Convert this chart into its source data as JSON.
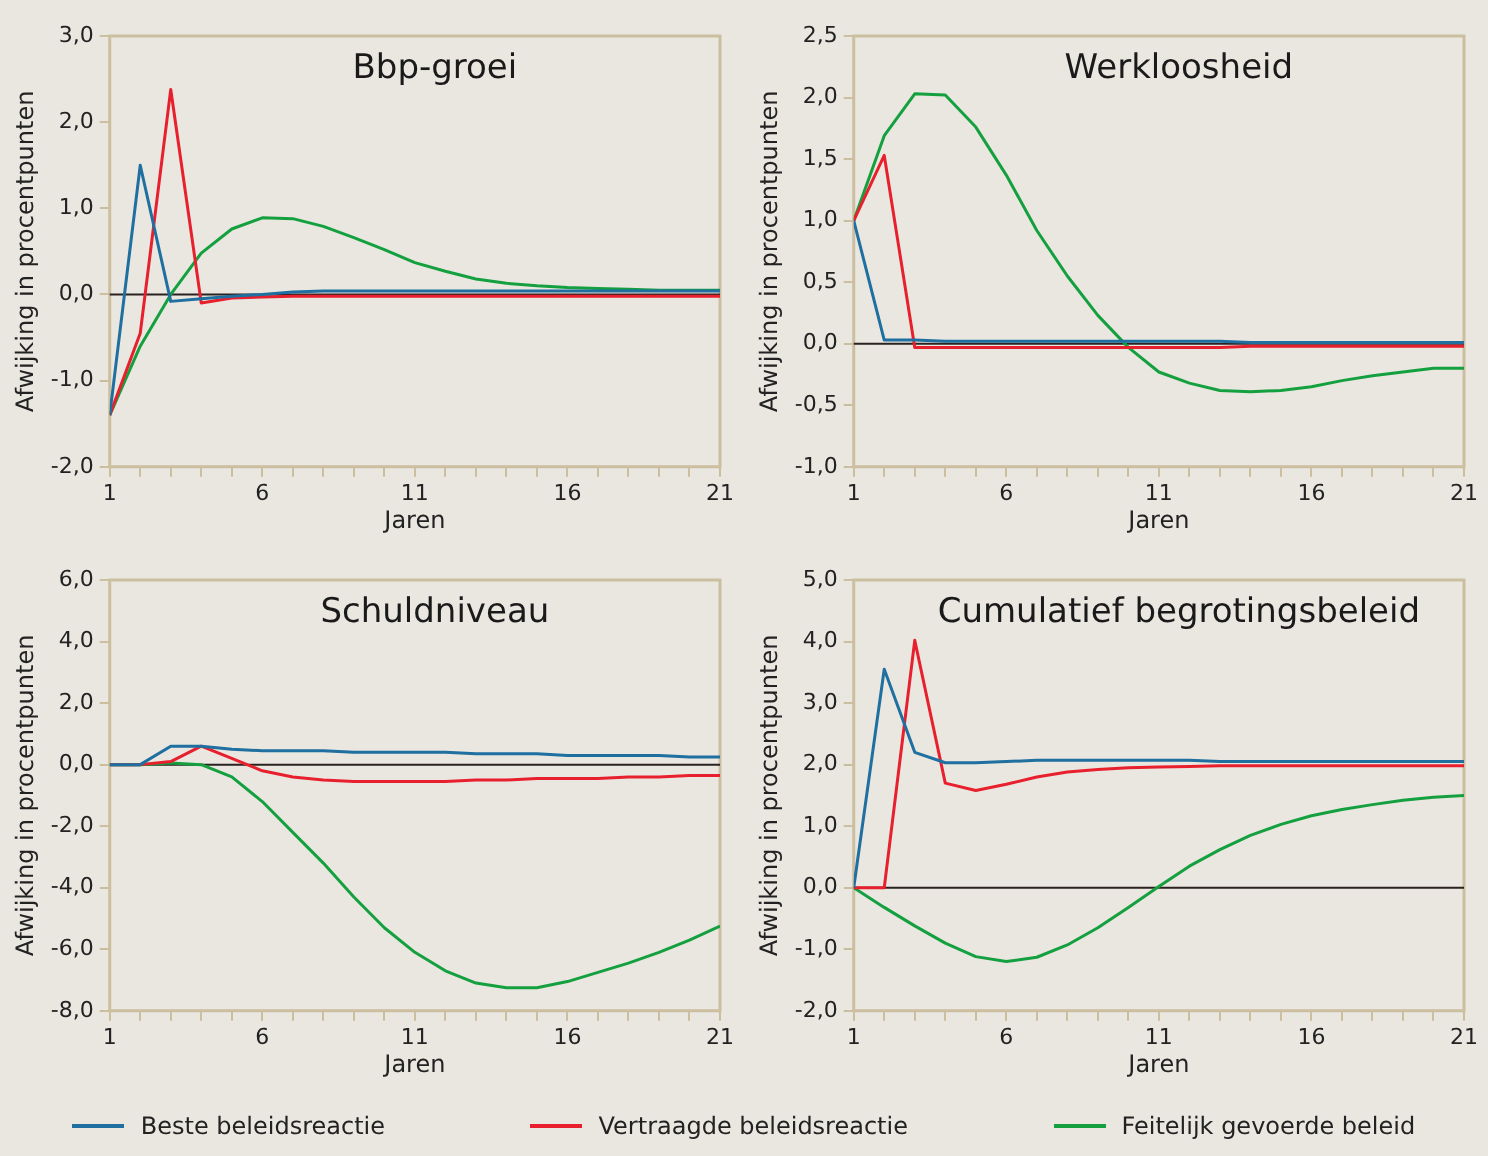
{
  "chart_data": [
    {
      "type": "line",
      "title": "Bbp-groei",
      "xlabel": "Jaren",
      "ylabel": "Afwijking in procentpunten",
      "legend": "bottom",
      "grid": false,
      "x": [
        1,
        2,
        3,
        4,
        5,
        6,
        7,
        8,
        9,
        10,
        11,
        12,
        13,
        14,
        15,
        16,
        17,
        18,
        19,
        20,
        21
      ],
      "xlim": [
        1,
        21
      ],
      "xticks": [
        1,
        {
          "value": 2,
          "label": null
        },
        {
          "value": 3,
          "label": null
        },
        {
          "value": 4,
          "label": null
        },
        {
          "value": 5,
          "label": null
        },
        6,
        {
          "value": 7,
          "label": null
        },
        {
          "value": 8,
          "label": null
        },
        {
          "value": 9,
          "label": null
        },
        {
          "value": 10,
          "label": null
        },
        11,
        {
          "value": 12,
          "label": null
        },
        {
          "value": 13,
          "label": null
        },
        {
          "value": 14,
          "label": null
        },
        {
          "value": 15,
          "label": null
        },
        16,
        {
          "value": 17,
          "label": null
        },
        {
          "value": 18,
          "label": null
        },
        {
          "value": 19,
          "label": null
        },
        {
          "value": 20,
          "label": null
        },
        21
      ],
      "ylim": [
        -2,
        3
      ],
      "yticks": [
        {
          "value": -2,
          "label": "-2,0"
        },
        {
          "value": -1,
          "label": "-1,0"
        },
        {
          "value": 0,
          "label": "0,0"
        },
        {
          "value": 1,
          "label": "1,0"
        },
        {
          "value": 2,
          "label": "2,0"
        },
        {
          "value": 3,
          "label": "3,0"
        }
      ],
      "ref_lines": [
        {
          "axis": "y",
          "value": 0,
          "label": null,
          "color": "#2b2220"
        }
      ],
      "series": [
        {
          "name": "Beste beleidsreactie",
          "color": "#1f6fa0",
          "values": [
            -1.4,
            1.5,
            -0.08,
            -0.05,
            -0.02,
            0,
            0.03,
            0.04,
            0.04,
            0.04,
            0.04,
            0.04,
            0.04,
            0.04,
            0.04,
            0.04,
            0.04,
            0.04,
            0.04,
            0.04,
            0.04
          ]
        },
        {
          "name": "Vertraagde beleidsreactie",
          "color": "#e8202e",
          "values": [
            -1.4,
            -0.45,
            2.38,
            -0.1,
            -0.04,
            -0.03,
            -0.02,
            -0.02,
            -0.02,
            -0.02,
            -0.02,
            -0.02,
            -0.02,
            -0.02,
            -0.02,
            -0.02,
            -0.02,
            -0.02,
            -0.02,
            -0.02,
            -0.02
          ]
        },
        {
          "name": "Feitelijk gevoerde beleid",
          "color": "#15a040",
          "values": [
            -1.4,
            -0.6,
            0,
            0.48,
            0.76,
            0.89,
            0.88,
            0.79,
            0.66,
            0.52,
            0.37,
            0.27,
            0.18,
            0.13,
            0.1,
            0.08,
            0.07,
            0.06,
            0.05,
            0.05,
            0.05
          ]
        }
      ]
    },
    {
      "type": "line",
      "title": "Werkloosheid",
      "xlabel": "Jaren",
      "ylabel": "Afwijking in procentpunten",
      "grid": false,
      "x": [
        1,
        2,
        3,
        4,
        5,
        6,
        7,
        8,
        9,
        10,
        11,
        12,
        13,
        14,
        15,
        16,
        17,
        18,
        19,
        20,
        21
      ],
      "xlim": [
        1,
        21
      ],
      "xticks": [
        1,
        {
          "value": 2,
          "label": null
        },
        {
          "value": 3,
          "label": null
        },
        {
          "value": 4,
          "label": null
        },
        {
          "value": 5,
          "label": null
        },
        6,
        {
          "value": 7,
          "label": null
        },
        {
          "value": 8,
          "label": null
        },
        {
          "value": 9,
          "label": null
        },
        {
          "value": 10,
          "label": null
        },
        11,
        {
          "value": 12,
          "label": null
        },
        {
          "value": 13,
          "label": null
        },
        {
          "value": 14,
          "label": null
        },
        {
          "value": 15,
          "label": null
        },
        16,
        {
          "value": 17,
          "label": null
        },
        {
          "value": 18,
          "label": null
        },
        {
          "value": 19,
          "label": null
        },
        {
          "value": 20,
          "label": null
        },
        21
      ],
      "ylim": [
        -1,
        2.5
      ],
      "yticks": [
        {
          "value": -1,
          "label": "-1,0"
        },
        {
          "value": -0.5,
          "label": "-0,5"
        },
        {
          "value": 0,
          "label": "0,0"
        },
        {
          "value": 0.5,
          "label": "0,5"
        },
        {
          "value": 1,
          "label": "1,0"
        },
        {
          "value": 1.5,
          "label": "1,5"
        },
        {
          "value": 2,
          "label": "2,0"
        },
        {
          "value": 2.5,
          "label": "2,5"
        }
      ],
      "ref_lines": [
        {
          "axis": "y",
          "value": 0,
          "label": null,
          "color": "#2b2220"
        }
      ],
      "series": [
        {
          "color": "#1f6fa0",
          "values": [
            1,
            0.03,
            0.03,
            0.02,
            0.02,
            0.02,
            0.02,
            0.02,
            0.02,
            0.02,
            0.02,
            0.02,
            0.02,
            0.01,
            0.01,
            0.01,
            0.01,
            0.01,
            0.01,
            0.01,
            0.01
          ]
        },
        {
          "color": "#e8202e",
          "values": [
            1,
            1.53,
            -0.03,
            -0.03,
            -0.03,
            -0.03,
            -0.03,
            -0.03,
            -0.03,
            -0.03,
            -0.03,
            -0.03,
            -0.03,
            -0.02,
            -0.02,
            -0.02,
            -0.02,
            -0.02,
            -0.02,
            -0.02,
            -0.02
          ]
        },
        {
          "color": "#15a040",
          "values": [
            1,
            1.69,
            2.03,
            2.02,
            1.76,
            1.37,
            0.92,
            0.55,
            0.23,
            -0.03,
            -0.23,
            -0.32,
            -0.38,
            -0.39,
            -0.38,
            -0.35,
            -0.3,
            -0.26,
            -0.23,
            -0.2,
            -0.2
          ]
        }
      ]
    },
    {
      "type": "line",
      "title": "Schuldniveau",
      "xlabel": "Jaren",
      "ylabel": "Afwijking in procentpunten",
      "grid": false,
      "x": [
        1,
        2,
        3,
        4,
        5,
        6,
        7,
        8,
        9,
        10,
        11,
        12,
        13,
        14,
        15,
        16,
        17,
        18,
        19,
        20,
        21
      ],
      "xlim": [
        1,
        21
      ],
      "xticks": [
        1,
        {
          "value": 2,
          "label": null
        },
        {
          "value": 3,
          "label": null
        },
        {
          "value": 4,
          "label": null
        },
        {
          "value": 5,
          "label": null
        },
        6,
        {
          "value": 7,
          "label": null
        },
        {
          "value": 8,
          "label": null
        },
        {
          "value": 9,
          "label": null
        },
        {
          "value": 10,
          "label": null
        },
        11,
        {
          "value": 12,
          "label": null
        },
        {
          "value": 13,
          "label": null
        },
        {
          "value": 14,
          "label": null
        },
        {
          "value": 15,
          "label": null
        },
        16,
        {
          "value": 17,
          "label": null
        },
        {
          "value": 18,
          "label": null
        },
        {
          "value": 19,
          "label": null
        },
        {
          "value": 20,
          "label": null
        },
        21
      ],
      "ylim": [
        -8,
        6
      ],
      "yticks": [
        {
          "value": -8,
          "label": "-8,0"
        },
        {
          "value": -6,
          "label": "-6,0"
        },
        {
          "value": -4,
          "label": "-4,0"
        },
        {
          "value": -2,
          "label": "-2,0"
        },
        {
          "value": 0,
          "label": "0,0"
        },
        {
          "value": 2,
          "label": "2,0"
        },
        {
          "value": 4,
          "label": "4,0"
        },
        {
          "value": 6,
          "label": "6,0"
        }
      ],
      "ref_lines": [
        {
          "axis": "y",
          "value": 0,
          "label": null,
          "color": "#2b2220"
        }
      ],
      "series": [
        {
          "color": "#1f6fa0",
          "values": [
            0,
            0,
            0.6,
            0.6,
            0.5,
            0.45,
            0.45,
            0.45,
            0.4,
            0.4,
            0.4,
            0.4,
            0.35,
            0.35,
            0.35,
            0.3,
            0.3,
            0.3,
            0.3,
            0.25,
            0.25
          ]
        },
        {
          "color": "#e8202e",
          "values": [
            0,
            0,
            0.1,
            0.6,
            0.2,
            -0.2,
            -0.4,
            -0.5,
            -0.55,
            -0.55,
            -0.55,
            -0.55,
            -0.5,
            -0.5,
            -0.45,
            -0.45,
            -0.45,
            -0.4,
            -0.4,
            -0.35,
            -0.35
          ]
        },
        {
          "color": "#15a040",
          "values": [
            0,
            0,
            0.05,
            0,
            -0.4,
            -1.2,
            -2.2,
            -3.2,
            -4.3,
            -5.3,
            -6.1,
            -6.7,
            -7.1,
            -7.25,
            -7.25,
            -7.05,
            -6.75,
            -6.45,
            -6.1,
            -5.7,
            -5.25
          ]
        }
      ]
    },
    {
      "type": "line",
      "title": "Cumulatief begrotingsbeleid",
      "xlabel": "Jaren",
      "ylabel": "Afwijking in procentpunten",
      "grid": false,
      "x": [
        1,
        2,
        3,
        4,
        5,
        6,
        7,
        8,
        9,
        10,
        11,
        12,
        13,
        14,
        15,
        16,
        17,
        18,
        19,
        20,
        21
      ],
      "xlim": [
        1,
        21
      ],
      "xticks": [
        1,
        {
          "value": 2,
          "label": null
        },
        {
          "value": 3,
          "label": null
        },
        {
          "value": 4,
          "label": null
        },
        {
          "value": 5,
          "label": null
        },
        6,
        {
          "value": 7,
          "label": null
        },
        {
          "value": 8,
          "label": null
        },
        {
          "value": 9,
          "label": null
        },
        {
          "value": 10,
          "label": null
        },
        11,
        {
          "value": 12,
          "label": null
        },
        {
          "value": 13,
          "label": null
        },
        {
          "value": 14,
          "label": null
        },
        {
          "value": 15,
          "label": null
        },
        16,
        {
          "value": 17,
          "label": null
        },
        {
          "value": 18,
          "label": null
        },
        {
          "value": 19,
          "label": null
        },
        {
          "value": 20,
          "label": null
        },
        21
      ],
      "ylim": [
        -2,
        5
      ],
      "yticks": [
        {
          "value": -2,
          "label": "-2,0"
        },
        {
          "value": -1,
          "label": "-1,0"
        },
        {
          "value": 0,
          "label": "0,0"
        },
        {
          "value": 1,
          "label": "1,0"
        },
        {
          "value": 2,
          "label": "2,0"
        },
        {
          "value": 3,
          "label": "3,0"
        },
        {
          "value": 4,
          "label": "4,0"
        },
        {
          "value": 5,
          "label": "5,0"
        }
      ],
      "ref_lines": [
        {
          "axis": "y",
          "value": 0,
          "label": null,
          "color": "#2b2220"
        }
      ],
      "series": [
        {
          "color": "#1f6fa0",
          "values": [
            0,
            3.55,
            2.2,
            2.03,
            2.03,
            2.05,
            2.07,
            2.07,
            2.07,
            2.07,
            2.07,
            2.07,
            2.05,
            2.05,
            2.05,
            2.05,
            2.05,
            2.05,
            2.05,
            2.05,
            2.05
          ]
        },
        {
          "color": "#e8202e",
          "values": [
            0,
            0,
            4.02,
            1.7,
            1.58,
            1.68,
            1.8,
            1.88,
            1.92,
            1.95,
            1.96,
            1.97,
            1.98,
            1.98,
            1.98,
            1.98,
            1.98,
            1.98,
            1.98,
            1.98,
            1.98
          ]
        },
        {
          "color": "#15a040",
          "values": [
            0,
            -0.32,
            -0.62,
            -0.9,
            -1.12,
            -1.2,
            -1.13,
            -0.93,
            -0.65,
            -0.32,
            0.02,
            0.35,
            0.62,
            0.85,
            1.03,
            1.17,
            1.27,
            1.35,
            1.42,
            1.47,
            1.5
          ]
        }
      ]
    }
  ]
}
